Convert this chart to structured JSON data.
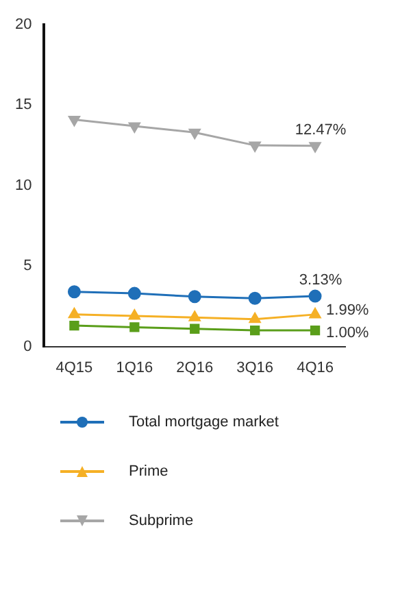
{
  "chart_data": {
    "type": "line",
    "categories": [
      "4Q15",
      "1Q16",
      "2Q16",
      "3Q16",
      "4Q16"
    ],
    "ylim": [
      0,
      20
    ],
    "yticks": [
      0,
      5,
      10,
      15,
      20
    ],
    "grid": false,
    "legend": "bottom",
    "series": [
      {
        "name": "Total mortgage market",
        "color": "#1f6fb8",
        "marker": "circle",
        "values": [
          3.4,
          3.3,
          3.1,
          3.0,
          3.13
        ],
        "value_labels": [
          null,
          null,
          null,
          null,
          "3.13%"
        ]
      },
      {
        "color": "#5a9e1a",
        "marker": "square",
        "values": [
          1.3,
          1.2,
          1.1,
          1.0,
          1.0
        ],
        "value_labels": [
          null,
          null,
          null,
          null,
          "1.00%"
        ]
      },
      {
        "name": "Prime",
        "color": "#f5b025",
        "marker": "triangle",
        "values": [
          2.0,
          1.9,
          1.8,
          1.7,
          1.99
        ],
        "value_labels": [
          null,
          null,
          null,
          null,
          "1.99%"
        ]
      },
      {
        "name": "Subprime",
        "color": "#a6a6a6",
        "marker": "triangle-down",
        "values": [
          14.1,
          13.7,
          13.3,
          12.5,
          12.47
        ],
        "value_labels": [
          null,
          null,
          null,
          null,
          "12.47%"
        ]
      }
    ]
  }
}
